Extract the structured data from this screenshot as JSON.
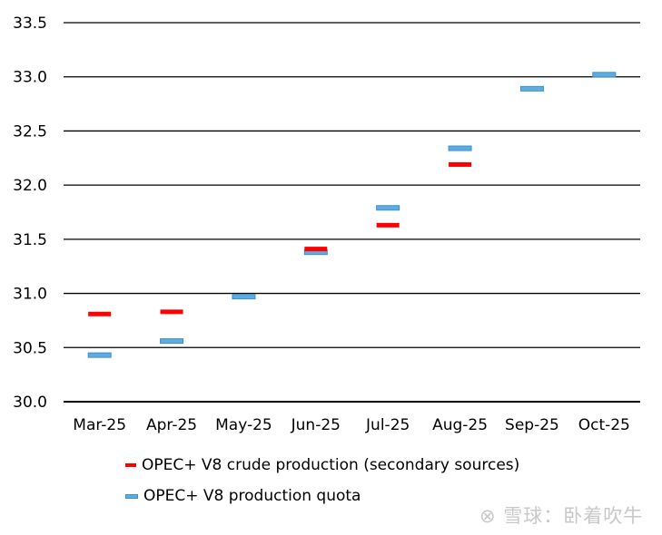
{
  "chart_data": {
    "type": "scatter",
    "title": "",
    "xlabel": "",
    "ylabel": "",
    "categories": [
      "Mar-25",
      "Apr-25",
      "May-25",
      "Jun-25",
      "Jul-25",
      "Aug-25",
      "Sep-25",
      "Oct-25"
    ],
    "ylim": [
      30.0,
      33.5
    ],
    "yticks": [
      "30.0",
      "30.5",
      "31.0",
      "31.5",
      "32.0",
      "32.5",
      "33.0",
      "33.5"
    ],
    "grid": true,
    "legend_position": "bottom",
    "series": [
      {
        "name": "OPEC+ V8 crude production (secondary sources)",
        "color": "#ff0000",
        "values": [
          30.81,
          30.83,
          null,
          31.41,
          31.63,
          32.19,
          null,
          null
        ]
      },
      {
        "name": "OPEC+ V8 production quota",
        "color": "#5dade2",
        "values": [
          30.43,
          30.56,
          30.97,
          31.38,
          31.79,
          32.34,
          32.89,
          33.02
        ]
      }
    ]
  },
  "watermark": "雪球：卧着吹牛"
}
